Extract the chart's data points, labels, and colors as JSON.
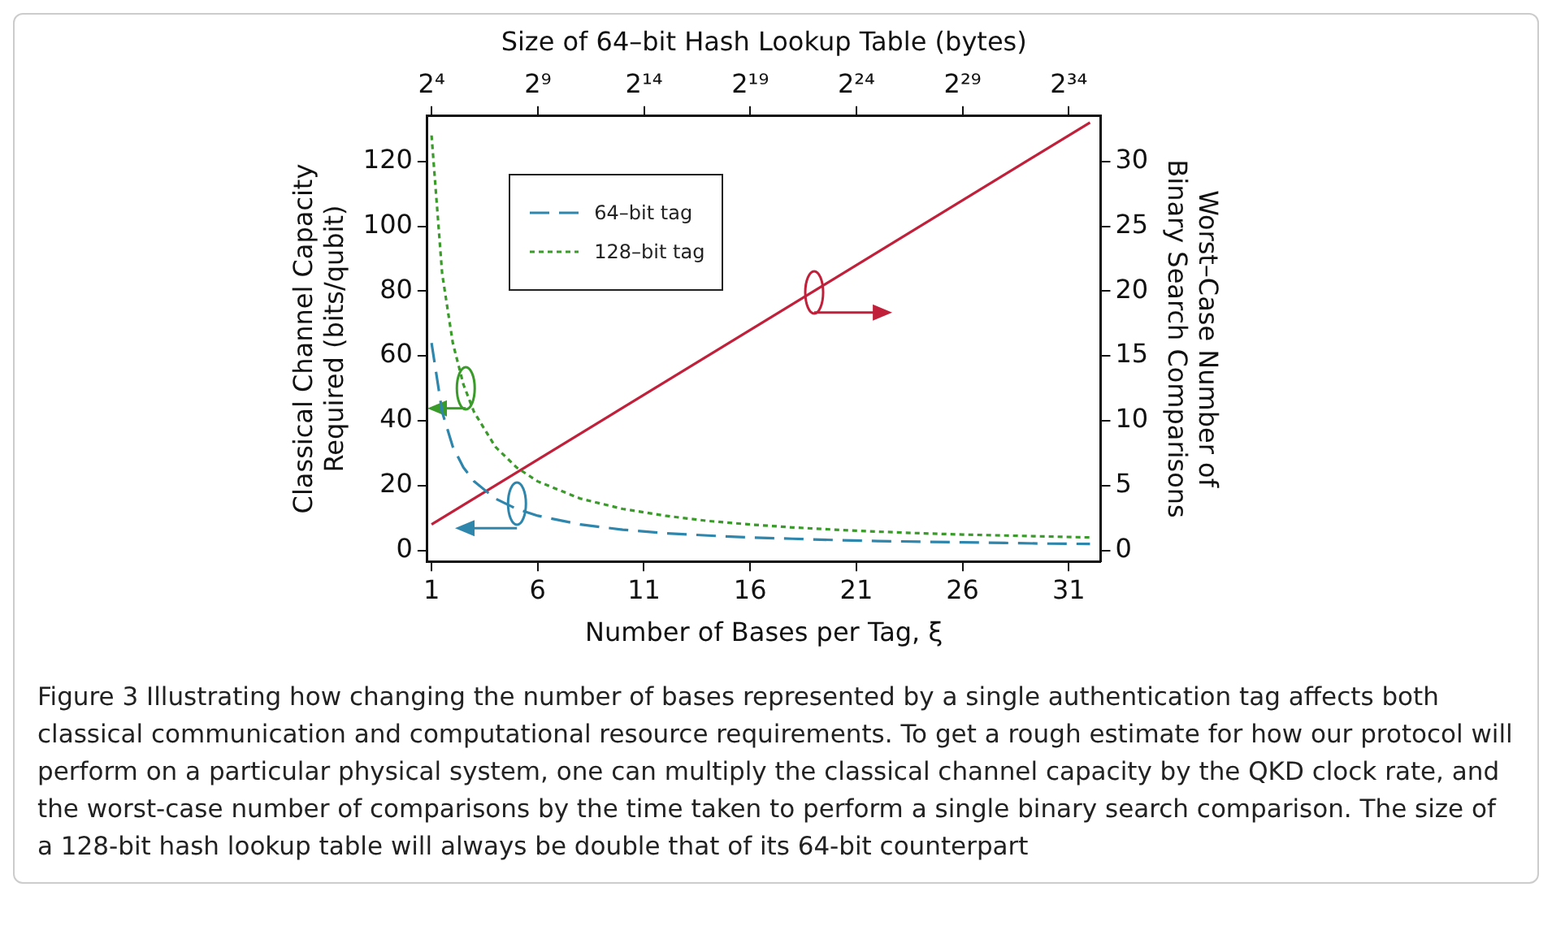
{
  "chart_data": {
    "type": "line",
    "xlabel": "Number of Bases per Tag, ξ",
    "x2label": "Size of 64–bit Hash Lookup Table (bytes)",
    "ylabel": "Classical Channel Capacity\nRequired (bits/qubit)",
    "y2label": "Worst–Case Number of\nBinary Search Comparisons",
    "xlim": [
      0.8,
      32.5
    ],
    "xticks": [
      1,
      6,
      11,
      16,
      21,
      26,
      31
    ],
    "x2lim": [
      13.9,
      48600000000
    ],
    "x2ticks": [
      {
        "value": 16,
        "label": "2⁴"
      },
      {
        "value": 512,
        "label": "2⁹"
      },
      {
        "value": 16384,
        "label": "2¹⁴"
      },
      {
        "value": 524288,
        "label": "2¹⁹"
      },
      {
        "value": 16777216,
        "label": "2²⁴"
      },
      {
        "value": 536870912,
        "label": "2²⁹"
      },
      {
        "value": 17179869184,
        "label": "2³⁴"
      }
    ],
    "log": "x2",
    "ylim": [
      -3.4,
      134
    ],
    "yticks": [
      0,
      20,
      40,
      60,
      80,
      100,
      120
    ],
    "y2lim": [
      -0.85,
      33.5
    ],
    "y2ticks": [
      0,
      5,
      10,
      15,
      20,
      25,
      30
    ],
    "grid": false,
    "legend": "top left",
    "marker": "none",
    "x": [
      1,
      1.5,
      2,
      2.5,
      3,
      4,
      5,
      6,
      8,
      10,
      12,
      14,
      16,
      18,
      20,
      22,
      24,
      26,
      28,
      30,
      32
    ],
    "series": [
      {
        "name": "64–bit tag",
        "color": "#2f86ac",
        "line_style": "dashed",
        "values": [
          64,
          42.7,
          32,
          25.6,
          21.3,
          16,
          12.8,
          10.7,
          8,
          6.4,
          5.3,
          4.6,
          4,
          3.6,
          3.2,
          2.9,
          2.7,
          2.5,
          2.3,
          2.1,
          2
        ]
      },
      {
        "name": "128–bit tag",
        "color": "#3a9a2a",
        "line_style": "dotted",
        "values": [
          128,
          85.3,
          64,
          51.2,
          42.7,
          32,
          25.6,
          21.3,
          16,
          12.8,
          10.7,
          9.1,
          8,
          7.1,
          6.4,
          5.8,
          5.3,
          4.9,
          4.6,
          4.3,
          4
        ]
      },
      {
        "color": "#c0203a",
        "line_style": "solid",
        "axis": "y2",
        "x": [
          1,
          32
        ],
        "values": [
          2,
          33
        ]
      }
    ],
    "annotations": [
      "Figure 3  Illustrating how changing the number of bases represented by a single authentication tag affects both classical communication and computational resource requirements. To get a rough estimate for how our protocol will perform on a particular physical system, one can multiply the classical channel capacity by the QKD clock rate, and the worst-case number of comparisons by the time taken to perform a single binary search comparison. The size of a 128-bit hash lookup table will always be double that of its 64-bit counterpart"
    ]
  }
}
